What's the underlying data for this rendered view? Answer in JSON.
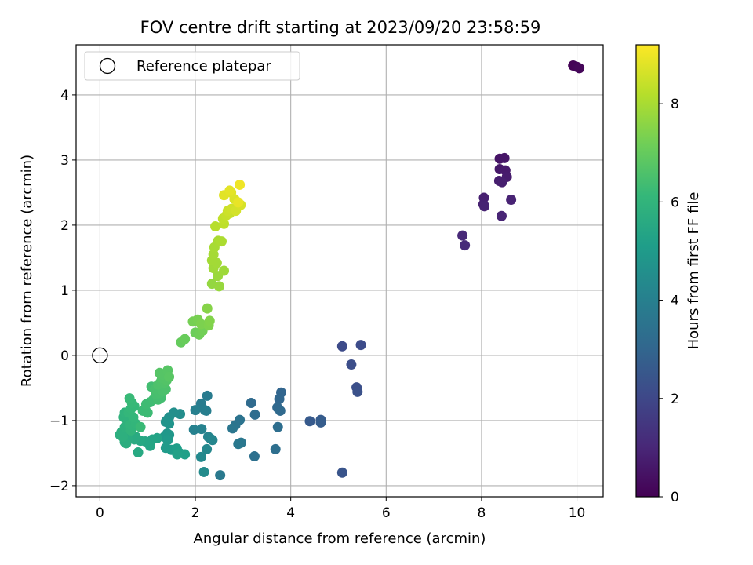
{
  "chart_data": {
    "type": "scatter",
    "title": "FOV centre drift starting at 2023/09/20 23:58:59",
    "xlabel": "Angular distance from reference (arcmin)",
    "ylabel": "Rotation from reference (arcmin)",
    "xlim": [
      -0.5,
      10.55
    ],
    "ylim": [
      -2.17,
      4.77
    ],
    "xticks": [
      0,
      2,
      4,
      6,
      8,
      10
    ],
    "yticks": [
      -2,
      -1,
      0,
      1,
      2,
      3,
      4
    ],
    "grid": true,
    "legend": {
      "position": "top-left",
      "entries": [
        {
          "label": "Reference platepar",
          "marker": "open-circle"
        }
      ]
    },
    "reference_point": {
      "x": 0,
      "y": 0
    },
    "colorbar": {
      "label": "Hours from first FF file",
      "range": [
        0,
        9.2
      ],
      "ticks": [
        0,
        2,
        4,
        6,
        8
      ],
      "colormap": "viridis"
    },
    "colormap_stops": [
      "#440154",
      "#482878",
      "#3e4989",
      "#31688e",
      "#26828e",
      "#1f9e89",
      "#35b779",
      "#6ece58",
      "#b5de2b",
      "#fde725"
    ],
    "points": [
      {
        "x": 9.92,
        "y": 4.45,
        "h": 0.05
      },
      {
        "x": 10.0,
        "y": 4.43,
        "h": 0.1
      },
      {
        "x": 10.05,
        "y": 4.41,
        "h": 0.15
      },
      {
        "x": 8.38,
        "y": 3.02,
        "h": 0.5
      },
      {
        "x": 8.48,
        "y": 3.03,
        "h": 0.55
      },
      {
        "x": 8.38,
        "y": 2.86,
        "h": 0.6
      },
      {
        "x": 8.5,
        "y": 2.84,
        "h": 0.65
      },
      {
        "x": 8.53,
        "y": 2.74,
        "h": 0.7
      },
      {
        "x": 8.37,
        "y": 2.68,
        "h": 0.75
      },
      {
        "x": 8.43,
        "y": 2.66,
        "h": 0.78
      },
      {
        "x": 8.05,
        "y": 2.42,
        "h": 0.8
      },
      {
        "x": 8.04,
        "y": 2.32,
        "h": 0.85
      },
      {
        "x": 8.06,
        "y": 2.29,
        "h": 0.88
      },
      {
        "x": 8.62,
        "y": 2.39,
        "h": 0.9
      },
      {
        "x": 8.42,
        "y": 2.14,
        "h": 0.95
      },
      {
        "x": 7.6,
        "y": 1.84,
        "h": 1.05
      },
      {
        "x": 7.65,
        "y": 1.69,
        "h": 1.1
      },
      {
        "x": 5.08,
        "y": 0.14,
        "h": 2.1
      },
      {
        "x": 5.47,
        "y": 0.16,
        "h": 2.15
      },
      {
        "x": 5.27,
        "y": -0.14,
        "h": 2.2
      },
      {
        "x": 5.38,
        "y": -0.49,
        "h": 2.25
      },
      {
        "x": 5.4,
        "y": -0.56,
        "h": 2.3
      },
      {
        "x": 5.08,
        "y": -1.8,
        "h": 2.4
      },
      {
        "x": 4.4,
        "y": -1.01,
        "h": 2.6
      },
      {
        "x": 4.63,
        "y": -0.99,
        "h": 2.65
      },
      {
        "x": 4.63,
        "y": -1.03,
        "h": 2.7
      },
      {
        "x": 3.8,
        "y": -0.57,
        "h": 3.0
      },
      {
        "x": 3.76,
        "y": -0.67,
        "h": 3.05
      },
      {
        "x": 3.72,
        "y": -0.8,
        "h": 3.1
      },
      {
        "x": 3.78,
        "y": -0.85,
        "h": 3.15
      },
      {
        "x": 3.17,
        "y": -0.73,
        "h": 3.2
      },
      {
        "x": 3.25,
        "y": -0.91,
        "h": 3.25
      },
      {
        "x": 3.73,
        "y": -1.1,
        "h": 3.3
      },
      {
        "x": 3.68,
        "y": -1.44,
        "h": 3.35
      },
      {
        "x": 3.24,
        "y": -1.55,
        "h": 3.4
      },
      {
        "x": 2.93,
        "y": -0.99,
        "h": 3.5
      },
      {
        "x": 2.84,
        "y": -1.07,
        "h": 3.55
      },
      {
        "x": 2.78,
        "y": -1.12,
        "h": 3.6
      },
      {
        "x": 2.96,
        "y": -1.34,
        "h": 3.65
      },
      {
        "x": 2.9,
        "y": -1.36,
        "h": 3.7
      },
      {
        "x": 2.52,
        "y": -1.84,
        "h": 3.75
      },
      {
        "x": 2.25,
        "y": -0.62,
        "h": 3.8
      },
      {
        "x": 2.12,
        "y": -0.74,
        "h": 3.85
      },
      {
        "x": 2.2,
        "y": -0.84,
        "h": 3.9
      },
      {
        "x": 2.23,
        "y": -0.85,
        "h": 3.95
      },
      {
        "x": 2.0,
        "y": -0.84,
        "h": 4.0
      },
      {
        "x": 1.97,
        "y": -1.14,
        "h": 4.05
      },
      {
        "x": 2.13,
        "y": -1.13,
        "h": 4.1
      },
      {
        "x": 2.27,
        "y": -1.25,
        "h": 4.15
      },
      {
        "x": 2.32,
        "y": -1.28,
        "h": 4.2
      },
      {
        "x": 2.36,
        "y": -1.3,
        "h": 4.25
      },
      {
        "x": 2.24,
        "y": -1.44,
        "h": 4.3
      },
      {
        "x": 2.12,
        "y": -1.56,
        "h": 4.35
      },
      {
        "x": 2.18,
        "y": -1.79,
        "h": 4.4
      },
      {
        "x": 1.68,
        "y": -0.9,
        "h": 4.5
      },
      {
        "x": 1.55,
        "y": -0.88,
        "h": 4.55
      },
      {
        "x": 1.45,
        "y": -0.95,
        "h": 4.6
      },
      {
        "x": 1.4,
        "y": -1.0,
        "h": 4.65
      },
      {
        "x": 1.38,
        "y": -1.02,
        "h": 4.7
      },
      {
        "x": 1.45,
        "y": -1.05,
        "h": 4.75
      },
      {
        "x": 1.41,
        "y": -1.2,
        "h": 4.8
      },
      {
        "x": 1.45,
        "y": -1.22,
        "h": 4.85
      },
      {
        "x": 1.35,
        "y": -1.25,
        "h": 4.9
      },
      {
        "x": 1.42,
        "y": -1.3,
        "h": 4.95
      },
      {
        "x": 1.38,
        "y": -1.42,
        "h": 5.0
      },
      {
        "x": 1.5,
        "y": -1.45,
        "h": 5.05
      },
      {
        "x": 1.61,
        "y": -1.43,
        "h": 5.1
      },
      {
        "x": 1.67,
        "y": -1.5,
        "h": 5.15
      },
      {
        "x": 1.78,
        "y": -1.52,
        "h": 5.2
      },
      {
        "x": 1.62,
        "y": -1.52,
        "h": 5.25
      },
      {
        "x": 1.2,
        "y": -1.27,
        "h": 5.3
      },
      {
        "x": 1.1,
        "y": -1.29,
        "h": 5.35
      },
      {
        "x": 1.05,
        "y": -1.39,
        "h": 5.4
      },
      {
        "x": 0.95,
        "y": -1.32,
        "h": 5.45
      },
      {
        "x": 0.85,
        "y": -1.31,
        "h": 5.5
      },
      {
        "x": 0.8,
        "y": -1.49,
        "h": 5.55
      },
      {
        "x": 0.72,
        "y": -1.29,
        "h": 5.6
      },
      {
        "x": 0.75,
        "y": -1.25,
        "h": 5.62
      },
      {
        "x": 0.6,
        "y": -1.28,
        "h": 5.65
      },
      {
        "x": 0.58,
        "y": -1.22,
        "h": 5.68
      },
      {
        "x": 0.52,
        "y": -1.33,
        "h": 5.7
      },
      {
        "x": 0.55,
        "y": -1.35,
        "h": 5.72
      },
      {
        "x": 0.45,
        "y": -1.18,
        "h": 5.75
      },
      {
        "x": 0.42,
        "y": -1.22,
        "h": 5.78
      },
      {
        "x": 0.5,
        "y": -1.16,
        "h": 5.8
      },
      {
        "x": 0.48,
        "y": -1.25,
        "h": 5.82
      },
      {
        "x": 0.52,
        "y": -1.1,
        "h": 5.85
      },
      {
        "x": 0.58,
        "y": -1.05,
        "h": 5.88
      },
      {
        "x": 0.6,
        "y": -1.0,
        "h": 5.9
      },
      {
        "x": 0.5,
        "y": -0.95,
        "h": 5.92
      },
      {
        "x": 0.52,
        "y": -0.88,
        "h": 5.95
      },
      {
        "x": 0.65,
        "y": -1.15,
        "h": 5.98
      },
      {
        "x": 0.68,
        "y": -1.08,
        "h": 6.0
      },
      {
        "x": 0.64,
        "y": -1.06,
        "h": 6.02
      },
      {
        "x": 0.75,
        "y": -1.05,
        "h": 6.05
      },
      {
        "x": 0.7,
        "y": -0.95,
        "h": 6.08
      },
      {
        "x": 0.6,
        "y": -0.88,
        "h": 6.1
      },
      {
        "x": 0.65,
        "y": -0.82,
        "h": 6.12
      },
      {
        "x": 0.72,
        "y": -0.78,
        "h": 6.15
      },
      {
        "x": 0.67,
        "y": -0.73,
        "h": 6.18
      },
      {
        "x": 0.62,
        "y": -0.66,
        "h": 6.2
      },
      {
        "x": 0.85,
        "y": -1.1,
        "h": 6.22
      },
      {
        "x": 0.9,
        "y": -0.85,
        "h": 6.25
      },
      {
        "x": 1.0,
        "y": -0.88,
        "h": 6.28
      },
      {
        "x": 1.05,
        "y": -0.72,
        "h": 6.3
      },
      {
        "x": 0.97,
        "y": -0.75,
        "h": 6.32
      },
      {
        "x": 1.12,
        "y": -0.68,
        "h": 6.35
      },
      {
        "x": 1.08,
        "y": -0.48,
        "h": 6.38
      },
      {
        "x": 1.22,
        "y": -0.68,
        "h": 6.4
      },
      {
        "x": 1.28,
        "y": -0.65,
        "h": 6.42
      },
      {
        "x": 1.18,
        "y": -0.6,
        "h": 6.45
      },
      {
        "x": 1.25,
        "y": -0.58,
        "h": 6.48
      },
      {
        "x": 1.15,
        "y": -0.52,
        "h": 6.5
      },
      {
        "x": 1.32,
        "y": -0.55,
        "h": 6.52
      },
      {
        "x": 1.38,
        "y": -0.52,
        "h": 6.55
      },
      {
        "x": 1.22,
        "y": -0.45,
        "h": 6.58
      },
      {
        "x": 1.28,
        "y": -0.4,
        "h": 6.6
      },
      {
        "x": 1.35,
        "y": -0.42,
        "h": 6.62
      },
      {
        "x": 1.3,
        "y": -0.35,
        "h": 6.65
      },
      {
        "x": 1.4,
        "y": -0.38,
        "h": 6.68
      },
      {
        "x": 1.32,
        "y": -0.3,
        "h": 6.7
      },
      {
        "x": 1.25,
        "y": -0.27,
        "h": 6.72
      },
      {
        "x": 1.42,
        "y": -0.23,
        "h": 6.75
      },
      {
        "x": 1.45,
        "y": -0.33,
        "h": 6.78
      },
      {
        "x": 1.7,
        "y": 0.2,
        "h": 7.0
      },
      {
        "x": 1.78,
        "y": 0.25,
        "h": 7.05
      },
      {
        "x": 2.0,
        "y": 0.35,
        "h": 7.1
      },
      {
        "x": 2.08,
        "y": 0.32,
        "h": 7.15
      },
      {
        "x": 2.15,
        "y": 0.38,
        "h": 7.2
      },
      {
        "x": 1.95,
        "y": 0.52,
        "h": 7.25
      },
      {
        "x": 2.05,
        "y": 0.55,
        "h": 7.3
      },
      {
        "x": 2.12,
        "y": 0.48,
        "h": 7.35
      },
      {
        "x": 2.28,
        "y": 0.46,
        "h": 7.4
      },
      {
        "x": 2.3,
        "y": 0.53,
        "h": 7.45
      },
      {
        "x": 2.25,
        "y": 0.72,
        "h": 7.5
      },
      {
        "x": 2.35,
        "y": 1.1,
        "h": 7.7
      },
      {
        "x": 2.5,
        "y": 1.06,
        "h": 7.75
      },
      {
        "x": 2.47,
        "y": 1.22,
        "h": 7.8
      },
      {
        "x": 2.6,
        "y": 1.3,
        "h": 7.85
      },
      {
        "x": 2.38,
        "y": 1.34,
        "h": 7.88
      },
      {
        "x": 2.45,
        "y": 1.42,
        "h": 7.9
      },
      {
        "x": 2.35,
        "y": 1.46,
        "h": 7.92
      },
      {
        "x": 2.38,
        "y": 1.55,
        "h": 7.95
      },
      {
        "x": 2.4,
        "y": 1.66,
        "h": 7.98
      },
      {
        "x": 2.48,
        "y": 1.76,
        "h": 8.0
      },
      {
        "x": 2.55,
        "y": 1.75,
        "h": 8.05
      },
      {
        "x": 2.42,
        "y": 1.98,
        "h": 8.2
      },
      {
        "x": 2.6,
        "y": 2.02,
        "h": 8.3
      },
      {
        "x": 2.58,
        "y": 2.1,
        "h": 8.35
      },
      {
        "x": 2.65,
        "y": 2.15,
        "h": 8.4
      },
      {
        "x": 2.72,
        "y": 2.18,
        "h": 8.45
      },
      {
        "x": 2.68,
        "y": 2.22,
        "h": 8.5
      },
      {
        "x": 2.76,
        "y": 2.25,
        "h": 8.55
      },
      {
        "x": 2.85,
        "y": 2.22,
        "h": 8.6
      },
      {
        "x": 2.95,
        "y": 2.31,
        "h": 8.65
      },
      {
        "x": 2.82,
        "y": 2.4,
        "h": 8.7
      },
      {
        "x": 2.75,
        "y": 2.5,
        "h": 8.75
      },
      {
        "x": 2.6,
        "y": 2.46,
        "h": 8.8
      },
      {
        "x": 2.72,
        "y": 2.53,
        "h": 8.85
      },
      {
        "x": 2.9,
        "y": 2.35,
        "h": 8.9
      },
      {
        "x": 2.93,
        "y": 2.62,
        "h": 9.0
      }
    ]
  }
}
